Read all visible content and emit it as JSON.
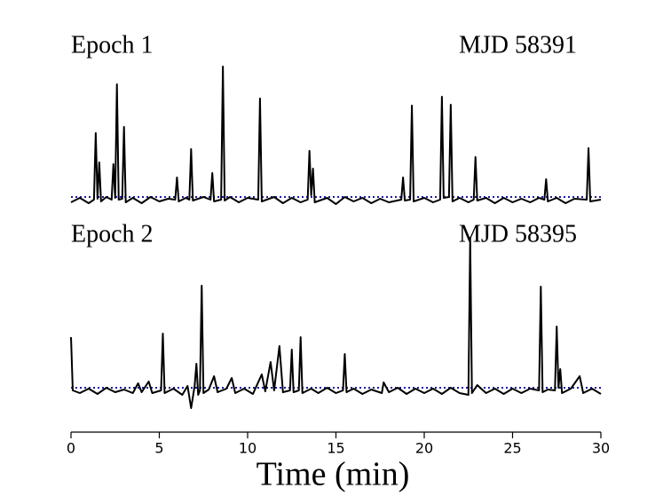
{
  "chart_data": [
    {
      "type": "line",
      "title": "Epoch 1",
      "subtitle": "MJD 58391",
      "xlim": [
        0,
        30
      ],
      "ylim": [
        -2,
        15
      ],
      "series": [
        {
          "color": "#000000",
          "x": [
            0,
            0.5,
            1.0,
            1.3,
            1.4,
            1.5,
            1.6,
            1.7,
            2.0,
            2.3,
            2.4,
            2.5,
            2.6,
            2.7,
            2.9,
            3.0,
            3.1,
            3.5,
            4.0,
            4.5,
            5.0,
            5.5,
            5.9,
            6.0,
            6.1,
            6.5,
            6.7,
            6.8,
            6.9,
            7.5,
            7.9,
            8.0,
            8.1,
            8.5,
            8.6,
            8.7,
            9.0,
            9.5,
            10.0,
            10.6,
            10.7,
            10.8,
            11.5,
            12.0,
            12.5,
            13.0,
            13.4,
            13.5,
            13.6,
            13.7,
            13.8,
            14.5,
            15.0,
            15.5,
            16.0,
            16.5,
            17.0,
            17.5,
            18.0,
            18.7,
            18.8,
            18.9,
            19.2,
            19.3,
            19.4,
            20.0,
            20.5,
            20.9,
            21.0,
            21.1,
            21.4,
            21.5,
            21.6,
            22.0,
            22.5,
            22.8,
            22.9,
            23.0,
            23.5,
            24.0,
            24.5,
            25.0,
            25.5,
            26.0,
            26.5,
            26.8,
            26.9,
            27.0,
            27.5,
            28.0,
            28.5,
            29.2,
            29.3,
            29.4,
            30.0
          ],
          "values": [
            -0.3,
            0.2,
            -0.4,
            0,
            7.5,
            0.1,
            4.2,
            -0.2,
            0.3,
            0,
            4,
            0.2,
            13,
            0,
            0.1,
            8.2,
            -0.3,
            0.2,
            -0.4,
            0.3,
            -0.2,
            0.1,
            0,
            2.5,
            -0.2,
            0.2,
            0,
            5.7,
            -0.1,
            0.3,
            0,
            3,
            -0.2,
            0,
            15,
            -0.1,
            0.3,
            -0.3,
            0.2,
            0,
            11.4,
            -0.2,
            0.3,
            -0.4,
            0.2,
            -0.3,
            0,
            5.5,
            0.5,
            3.5,
            -0.3,
            0.2,
            -0.5,
            0.3,
            -0.2,
            0.2,
            -0.4,
            0.1,
            -0.3,
            0,
            2.5,
            -0.1,
            0,
            10.6,
            -0.2,
            0.2,
            -0.3,
            0,
            11.6,
            0.2,
            0.3,
            10.7,
            -0.2,
            0.2,
            -0.3,
            0,
            4.8,
            -0.1,
            0.2,
            -0.4,
            0.2,
            -0.3,
            0.1,
            -0.3,
            0.2,
            0,
            2.3,
            -0.2,
            0.2,
            -0.4,
            0.1,
            0,
            5.8,
            -0.2,
            0
          ]
        }
      ],
      "threshold": {
        "value": 0.3,
        "color": "#1a1aa0"
      }
    },
    {
      "type": "line",
      "title": "Epoch 2",
      "subtitle": "MJD 58395",
      "xlabel": "Time (min)",
      "xlim": [
        0,
        30
      ],
      "ylim": [
        -2.5,
        17.5
      ],
      "xticks": [
        0,
        5,
        10,
        15,
        20,
        25,
        30
      ],
      "series": [
        {
          "color": "#000000",
          "x": [
            0,
            0.1,
            0.5,
            1.0,
            1.5,
            2.0,
            2.5,
            3.0,
            3.5,
            3.8,
            4.0,
            4.4,
            4.6,
            5.1,
            5.2,
            5.3,
            5.8,
            6.3,
            6.6,
            6.8,
            7.0,
            7.1,
            7.2,
            7.3,
            7.4,
            7.5,
            7.8,
            8.1,
            8.3,
            8.8,
            9.1,
            9.3,
            9.8,
            10.3,
            10.8,
            11.0,
            11.3,
            11.5,
            11.8,
            12.0,
            12.4,
            12.5,
            12.6,
            12.9,
            13.0,
            13.1,
            13.6,
            14.0,
            14.5,
            15.0,
            15.4,
            15.5,
            15.6,
            16.0,
            16.5,
            17.0,
            17.6,
            17.7,
            18.0,
            18.5,
            19.0,
            19.5,
            20.0,
            20.5,
            21.0,
            21.5,
            22.0,
            22.5,
            22.6,
            22.7,
            23.0,
            23.5,
            24.0,
            24.5,
            25.0,
            25.5,
            26.0,
            26.5,
            26.6,
            26.7,
            27.0,
            27.4,
            27.5,
            27.6,
            27.7,
            27.8,
            28.3,
            28.8,
            29.0,
            29.5,
            30.0
          ],
          "values": [
            6,
            0,
            -0.3,
            0.2,
            -0.4,
            0.3,
            -0.2,
            0.1,
            -0.3,
            0.8,
            -0.2,
            1,
            -0.3,
            0,
            6.4,
            -0.3,
            0.2,
            -0.5,
            0.5,
            -2,
            0.5,
            3,
            -0.5,
            0,
            11.8,
            -0.3,
            0.1,
            1.6,
            -0.2,
            0.2,
            1.4,
            -0.3,
            0.2,
            -0.4,
            1.8,
            -0.1,
            3.2,
            0,
            5,
            -0.2,
            0,
            4.6,
            -0.2,
            0,
            6,
            -0.3,
            0.2,
            -0.3,
            0.3,
            -0.3,
            0,
            4.1,
            -0.2,
            0.2,
            -0.4,
            0.1,
            -0.3,
            0.9,
            -0.2,
            0.3,
            -0.4,
            0.2,
            -0.3,
            0.2,
            -0.4,
            0.3,
            -0.3,
            -0.5,
            17.2,
            -0.3,
            0.6,
            -0.3,
            0.2,
            -0.4,
            0.2,
            -0.3,
            0.2,
            0,
            11.7,
            -0.2,
            0.1,
            0,
            7.2,
            0.3,
            2.4,
            -0.3,
            0.2,
            1.6,
            -0.3,
            0.2,
            -0.4
          ]
        }
      ],
      "threshold": {
        "value": 0.3,
        "color": "#1a1aa0"
      }
    }
  ]
}
